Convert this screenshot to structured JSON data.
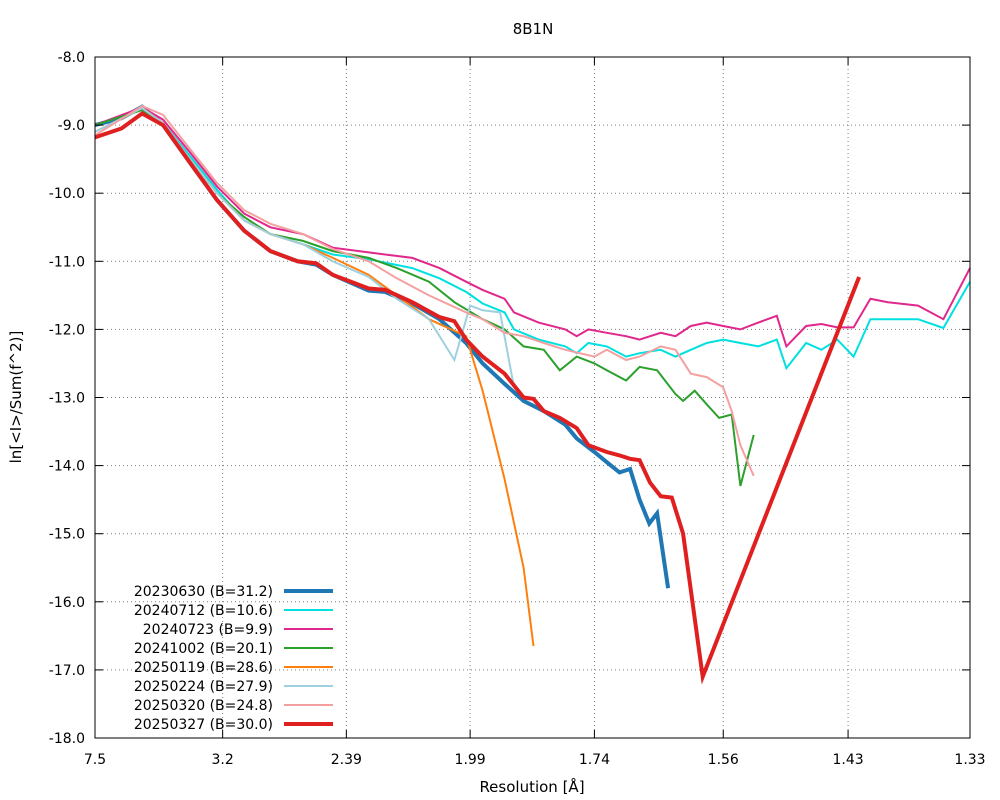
{
  "chart_data": {
    "type": "line",
    "title": "8B1N",
    "xlabel": "Resolution [Å]",
    "ylabel": "ln[<I>/Sum(f^2)]",
    "x_scale": "inverse-square resolution (1/d²), labeled in Å",
    "xlim": [
      7.5,
      1.33
    ],
    "ylim": [
      -18.0,
      -8.0
    ],
    "x_ticks": [
      "7.5",
      "3.2",
      "2.39",
      "1.99",
      "1.74",
      "1.56",
      "1.43",
      "1.33"
    ],
    "y_ticks": [
      "-8.0",
      "-9.0",
      "-10.0",
      "-11.0",
      "-12.0",
      "-13.0",
      "-14.0",
      "-15.0",
      "-16.0",
      "-17.0",
      "-18.0"
    ],
    "grid": true,
    "legend_position": "bottom-left",
    "series": [
      {
        "name": "20230630 (B=31.2)",
        "color": "#1f77b4",
        "width": 4,
        "points": [
          [
            7.5,
            -9.0
          ],
          [
            5.4,
            -8.9
          ],
          [
            4.6,
            -8.73
          ],
          [
            4.07,
            -9.0
          ],
          [
            3.6,
            -9.55
          ],
          [
            3.26,
            -10.1
          ],
          [
            3.0,
            -10.55
          ],
          [
            2.8,
            -10.85
          ],
          [
            2.63,
            -11.0
          ],
          [
            2.53,
            -11.05
          ],
          [
            2.45,
            -11.2
          ],
          [
            2.3,
            -11.43
          ],
          [
            2.24,
            -11.45
          ],
          [
            2.15,
            -11.62
          ],
          [
            2.07,
            -11.85
          ],
          [
            2.0,
            -12.2
          ],
          [
            1.96,
            -12.5
          ],
          [
            1.91,
            -12.8
          ],
          [
            1.87,
            -13.05
          ],
          [
            1.83,
            -13.2
          ],
          [
            1.79,
            -13.4
          ],
          [
            1.77,
            -13.6
          ],
          [
            1.74,
            -13.8
          ],
          [
            1.72,
            -13.95
          ],
          [
            1.7,
            -14.1
          ],
          [
            1.684,
            -14.05
          ],
          [
            1.67,
            -14.5
          ],
          [
            1.656,
            -14.85
          ],
          [
            1.645,
            -14.7
          ],
          [
            1.63,
            -15.8
          ]
        ]
      },
      {
        "name": "20240712 (B=10.6)",
        "color": "#00e0e0",
        "width": 2,
        "points": [
          [
            7.5,
            -9.0
          ],
          [
            4.6,
            -8.75
          ],
          [
            4.07,
            -8.97
          ],
          [
            3.6,
            -9.45
          ],
          [
            3.26,
            -9.95
          ],
          [
            3.0,
            -10.4
          ],
          [
            2.8,
            -10.6
          ],
          [
            2.6,
            -10.75
          ],
          [
            2.45,
            -10.9
          ],
          [
            2.3,
            -10.97
          ],
          [
            2.15,
            -11.1
          ],
          [
            2.07,
            -11.25
          ],
          [
            2.0,
            -11.45
          ],
          [
            1.96,
            -11.62
          ],
          [
            1.91,
            -11.75
          ],
          [
            1.89,
            -12.0
          ],
          [
            1.84,
            -12.15
          ],
          [
            1.79,
            -12.25
          ],
          [
            1.77,
            -12.35
          ],
          [
            1.75,
            -12.2
          ],
          [
            1.72,
            -12.25
          ],
          [
            1.69,
            -12.4
          ],
          [
            1.67,
            -12.35
          ],
          [
            1.64,
            -12.3
          ],
          [
            1.62,
            -12.4
          ],
          [
            1.6,
            -12.3
          ],
          [
            1.58,
            -12.2
          ],
          [
            1.56,
            -12.15
          ],
          [
            1.54,
            -12.2
          ],
          [
            1.52,
            -12.25
          ],
          [
            1.5,
            -12.15
          ],
          [
            1.49,
            -12.57
          ],
          [
            1.47,
            -12.2
          ],
          [
            1.455,
            -12.3
          ],
          [
            1.44,
            -12.15
          ],
          [
            1.425,
            -12.4
          ],
          [
            1.41,
            -11.85
          ],
          [
            1.395,
            -11.85
          ],
          [
            1.37,
            -11.85
          ],
          [
            1.35,
            -11.98
          ],
          [
            1.33,
            -11.3
          ]
        ]
      },
      {
        "name": "20240723 (B=9.9)",
        "color": "#e0288c",
        "width": 2,
        "points": [
          [
            7.5,
            -9.0
          ],
          [
            4.6,
            -8.74
          ],
          [
            4.07,
            -8.92
          ],
          [
            3.6,
            -9.4
          ],
          [
            3.26,
            -9.9
          ],
          [
            3.0,
            -10.3
          ],
          [
            2.8,
            -10.5
          ],
          [
            2.6,
            -10.6
          ],
          [
            2.45,
            -10.8
          ],
          [
            2.3,
            -10.87
          ],
          [
            2.15,
            -10.95
          ],
          [
            2.07,
            -11.1
          ],
          [
            2.0,
            -11.3
          ],
          [
            1.96,
            -11.42
          ],
          [
            1.91,
            -11.55
          ],
          [
            1.89,
            -11.75
          ],
          [
            1.84,
            -11.9
          ],
          [
            1.79,
            -12.0
          ],
          [
            1.77,
            -12.1
          ],
          [
            1.75,
            -12.0
          ],
          [
            1.72,
            -12.05
          ],
          [
            1.69,
            -12.1
          ],
          [
            1.67,
            -12.15
          ],
          [
            1.64,
            -12.05
          ],
          [
            1.62,
            -12.1
          ],
          [
            1.6,
            -11.95
          ],
          [
            1.58,
            -11.9
          ],
          [
            1.56,
            -11.95
          ],
          [
            1.54,
            -12.0
          ],
          [
            1.52,
            -11.9
          ],
          [
            1.5,
            -11.8
          ],
          [
            1.49,
            -12.25
          ],
          [
            1.47,
            -11.95
          ],
          [
            1.455,
            -11.92
          ],
          [
            1.44,
            -11.97
          ],
          [
            1.425,
            -11.97
          ],
          [
            1.41,
            -11.55
          ],
          [
            1.395,
            -11.6
          ],
          [
            1.37,
            -11.65
          ],
          [
            1.35,
            -11.85
          ],
          [
            1.33,
            -11.1
          ]
        ]
      },
      {
        "name": "20241002 (B=20.1)",
        "color": "#2ca02c",
        "width": 2,
        "points": [
          [
            7.5,
            -9.0
          ],
          [
            4.6,
            -8.78
          ],
          [
            4.07,
            -9.0
          ],
          [
            3.6,
            -9.5
          ],
          [
            3.26,
            -10.0
          ],
          [
            3.0,
            -10.35
          ],
          [
            2.8,
            -10.6
          ],
          [
            2.6,
            -10.7
          ],
          [
            2.45,
            -10.85
          ],
          [
            2.3,
            -10.95
          ],
          [
            2.2,
            -11.1
          ],
          [
            2.1,
            -11.3
          ],
          [
            2.03,
            -11.6
          ],
          [
            1.96,
            -11.85
          ],
          [
            1.91,
            -12.0
          ],
          [
            1.87,
            -12.25
          ],
          [
            1.83,
            -12.3
          ],
          [
            1.8,
            -12.6
          ],
          [
            1.77,
            -12.4
          ],
          [
            1.74,
            -12.5
          ],
          [
            1.72,
            -12.6
          ],
          [
            1.69,
            -12.75
          ],
          [
            1.67,
            -12.55
          ],
          [
            1.645,
            -12.6
          ],
          [
            1.62,
            -12.95
          ],
          [
            1.61,
            -13.05
          ],
          [
            1.595,
            -12.9
          ],
          [
            1.58,
            -13.1
          ],
          [
            1.565,
            -13.3
          ],
          [
            1.55,
            -13.25
          ],
          [
            1.54,
            -14.3
          ],
          [
            1.525,
            -13.55
          ]
        ]
      },
      {
        "name": "20250119 (B=28.6)",
        "color": "#ff7f0e",
        "width": 2,
        "points": [
          [
            7.5,
            -9.1
          ],
          [
            4.6,
            -8.75
          ],
          [
            4.07,
            -8.97
          ],
          [
            3.6,
            -9.5
          ],
          [
            3.26,
            -10.0
          ],
          [
            3.0,
            -10.4
          ],
          [
            2.8,
            -10.6
          ],
          [
            2.6,
            -10.75
          ],
          [
            2.45,
            -10.95
          ],
          [
            2.3,
            -11.2
          ],
          [
            2.2,
            -11.5
          ],
          [
            2.1,
            -11.85
          ],
          [
            2.0,
            -12.1
          ],
          [
            1.96,
            -12.9
          ],
          [
            1.91,
            -14.2
          ],
          [
            1.87,
            -15.5
          ],
          [
            1.85,
            -16.65
          ]
        ]
      },
      {
        "name": "20250224 (B=27.9)",
        "color": "#9fd0e0",
        "width": 2,
        "points": [
          [
            7.5,
            -9.1
          ],
          [
            4.6,
            -8.75
          ],
          [
            4.07,
            -8.97
          ],
          [
            3.6,
            -9.5
          ],
          [
            3.26,
            -10.0
          ],
          [
            3.0,
            -10.4
          ],
          [
            2.8,
            -10.6
          ],
          [
            2.6,
            -10.75
          ],
          [
            2.45,
            -11.0
          ],
          [
            2.3,
            -11.23
          ],
          [
            2.2,
            -11.55
          ],
          [
            2.1,
            -11.85
          ],
          [
            2.03,
            -12.45
          ],
          [
            1.99,
            -11.65
          ],
          [
            1.96,
            -11.72
          ],
          [
            1.92,
            -11.75
          ],
          [
            1.89,
            -12.85
          ]
        ]
      },
      {
        "name": "20250320 (B=24.8)",
        "color": "#f4a0a0",
        "width": 2,
        "points": [
          [
            7.5,
            -9.15
          ],
          [
            4.6,
            -8.72
          ],
          [
            4.07,
            -8.85
          ],
          [
            3.6,
            -9.35
          ],
          [
            3.26,
            -9.85
          ],
          [
            3.0,
            -10.25
          ],
          [
            2.8,
            -10.45
          ],
          [
            2.6,
            -10.6
          ],
          [
            2.45,
            -10.82
          ],
          [
            2.3,
            -11.0
          ],
          [
            2.2,
            -11.25
          ],
          [
            2.1,
            -11.5
          ],
          [
            2.0,
            -11.75
          ],
          [
            1.96,
            -11.85
          ],
          [
            1.91,
            -12.05
          ],
          [
            1.87,
            -12.1
          ],
          [
            1.83,
            -12.2
          ],
          [
            1.79,
            -12.3
          ],
          [
            1.74,
            -12.4
          ],
          [
            1.72,
            -12.3
          ],
          [
            1.69,
            -12.45
          ],
          [
            1.67,
            -12.4
          ],
          [
            1.64,
            -12.25
          ],
          [
            1.62,
            -12.3
          ],
          [
            1.6,
            -12.65
          ],
          [
            1.58,
            -12.7
          ],
          [
            1.56,
            -12.85
          ],
          [
            1.55,
            -13.2
          ],
          [
            1.54,
            -13.7
          ],
          [
            1.525,
            -14.15
          ]
        ]
      },
      {
        "name": "20250327 (B=30.0)",
        "color": "#e02020",
        "width": 4,
        "points": [
          [
            7.5,
            -9.18
          ],
          [
            5.4,
            -9.05
          ],
          [
            4.6,
            -8.83
          ],
          [
            4.07,
            -9.0
          ],
          [
            3.6,
            -9.55
          ],
          [
            3.26,
            -10.1
          ],
          [
            3.0,
            -10.55
          ],
          [
            2.8,
            -10.85
          ],
          [
            2.63,
            -11.0
          ],
          [
            2.53,
            -11.03
          ],
          [
            2.45,
            -11.2
          ],
          [
            2.3,
            -11.4
          ],
          [
            2.24,
            -11.42
          ],
          [
            2.15,
            -11.6
          ],
          [
            2.07,
            -11.82
          ],
          [
            2.03,
            -11.88
          ],
          [
            2.0,
            -12.15
          ],
          [
            1.96,
            -12.4
          ],
          [
            1.91,
            -12.65
          ],
          [
            1.87,
            -13.0
          ],
          [
            1.85,
            -13.02
          ],
          [
            1.83,
            -13.2
          ],
          [
            1.8,
            -13.3
          ],
          [
            1.77,
            -13.45
          ],
          [
            1.75,
            -13.7
          ],
          [
            1.72,
            -13.8
          ],
          [
            1.7,
            -13.85
          ],
          [
            1.684,
            -13.9
          ],
          [
            1.67,
            -13.92
          ],
          [
            1.655,
            -14.25
          ],
          [
            1.64,
            -14.45
          ],
          [
            1.625,
            -14.47
          ],
          [
            1.61,
            -15.0
          ],
          [
            1.585,
            -17.1
          ],
          [
            1.42,
            -11.23
          ]
        ]
      }
    ]
  }
}
